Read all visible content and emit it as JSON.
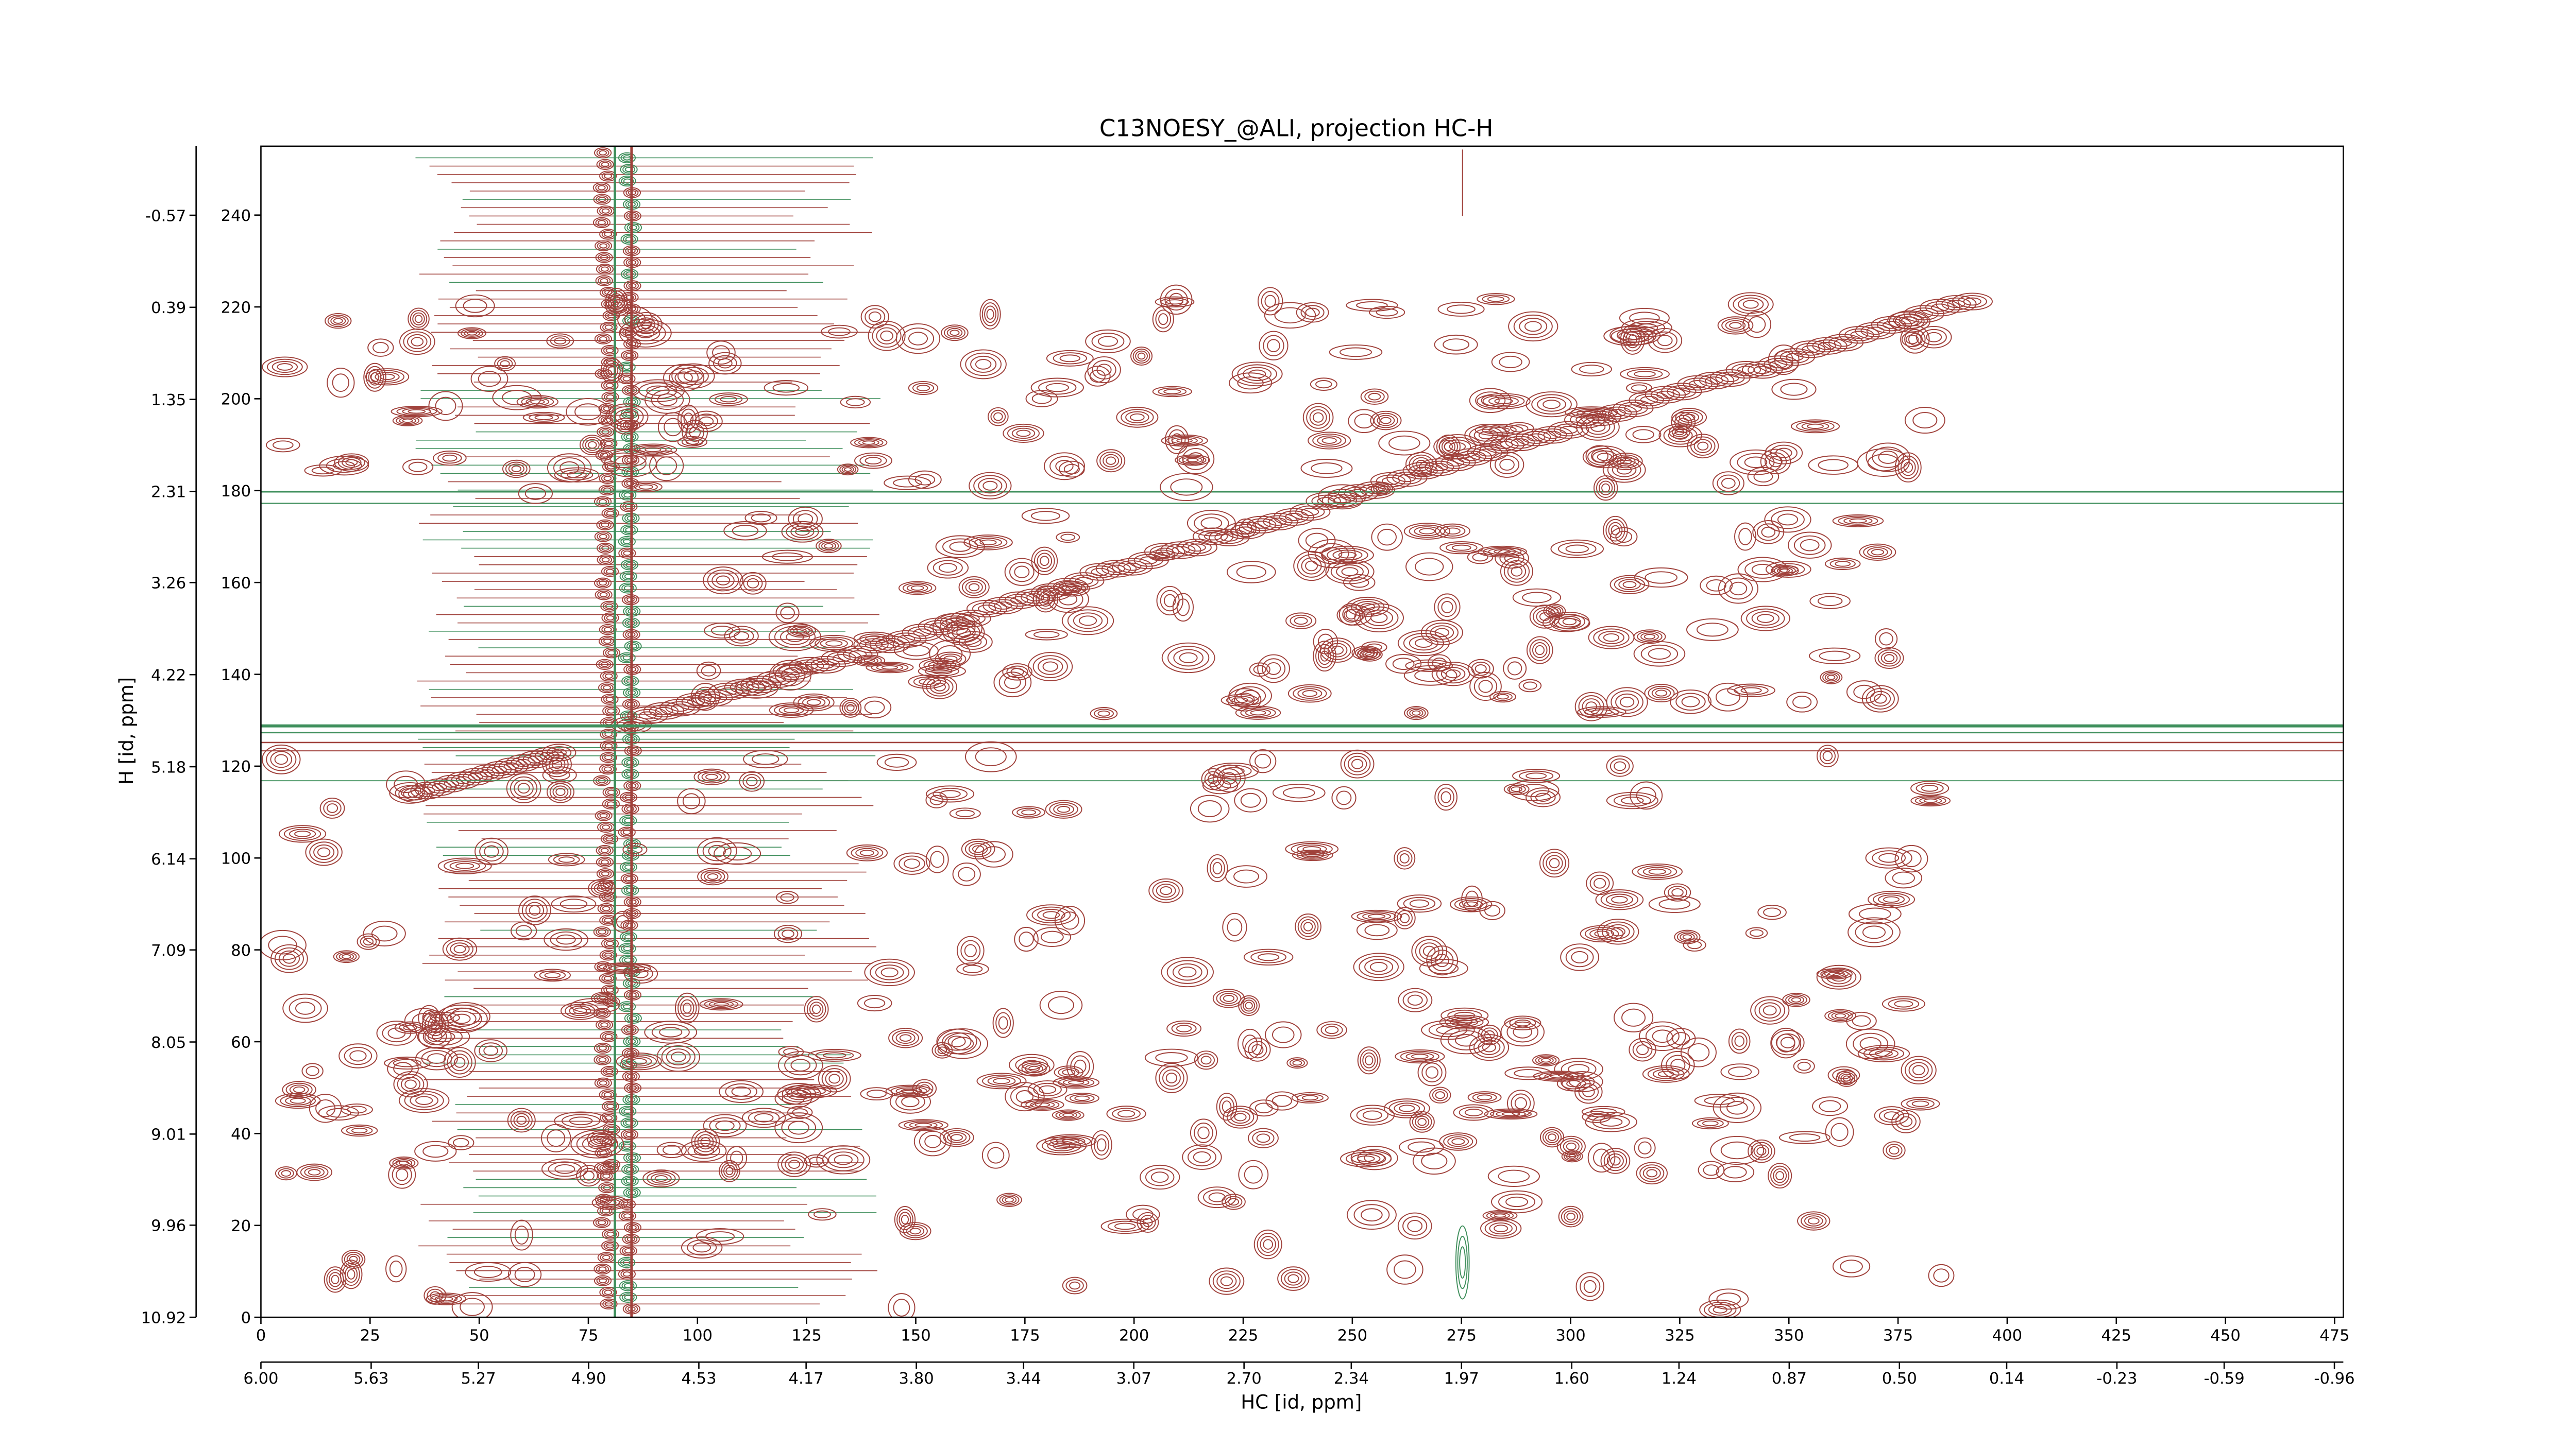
{
  "chart_data": {
    "type": "contour",
    "title": "C13NOESY_@ALI, projection HC-H",
    "x_label": "HC [id, ppm]",
    "y_label": "H [id, ppm]",
    "xlim": [
      0,
      477
    ],
    "xticks": [
      0,
      25,
      50,
      75,
      100,
      125,
      150,
      175,
      200,
      225,
      250,
      275,
      300,
      325,
      350,
      375,
      400,
      425,
      450,
      475
    ],
    "x2lim": [
      6.0,
      -0.99
    ],
    "x2ticks": [
      {
        "value": 6.0,
        "label": "6.00"
      },
      {
        "value": 5.63,
        "label": "5.63"
      },
      {
        "value": 5.27,
        "label": "5.27"
      },
      {
        "value": 4.9,
        "label": "4.90"
      },
      {
        "value": 4.53,
        "label": "4.53"
      },
      {
        "value": 4.17,
        "label": "4.17"
      },
      {
        "value": 3.8,
        "label": "3.80"
      },
      {
        "value": 3.44,
        "label": "3.44"
      },
      {
        "value": 3.07,
        "label": "3.07"
      },
      {
        "value": 2.7,
        "label": "2.70"
      },
      {
        "value": 2.34,
        "label": "2.34"
      },
      {
        "value": 1.97,
        "label": "1.97"
      },
      {
        "value": 1.6,
        "label": "1.60"
      },
      {
        "value": 1.24,
        "label": "1.24"
      },
      {
        "value": 0.87,
        "label": "0.87"
      },
      {
        "value": 0.5,
        "label": "0.50"
      },
      {
        "value": 0.14,
        "label": "0.14"
      },
      {
        "value": -0.23,
        "label": "-0.23"
      },
      {
        "value": -0.59,
        "label": "-0.59"
      },
      {
        "value": -0.96,
        "label": "-0.96"
      }
    ],
    "ylim": [
      0,
      255
    ],
    "yticks": [
      0,
      20,
      40,
      60,
      80,
      100,
      120,
      140,
      160,
      180,
      200,
      220,
      240
    ],
    "y2lim": [
      10.92,
      -1.29
    ],
    "y2ticks": [
      10.92,
      9.96,
      9.01,
      8.05,
      7.09,
      6.14,
      5.18,
      4.22,
      3.26,
      2.31,
      1.35,
      0.39,
      -0.57
    ],
    "colors": {
      "positive": "#a0413b",
      "negative": "#3f8f5c"
    }
  }
}
